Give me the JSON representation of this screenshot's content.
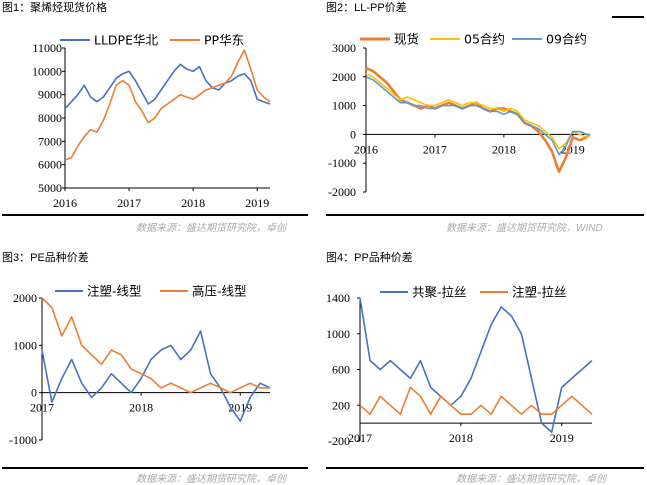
{
  "colors": {
    "blue": "#4472C4",
    "orange": "#ED7D31",
    "yellow": "#FFC000",
    "lightblue": "#5B9BD5",
    "source_gray": "#a9a9a9",
    "axis": "#000000"
  },
  "charts": {
    "c1": {
      "title": "图1：聚烯烃现货价格"
    },
    "c2": {
      "title": "图2：LL-PP价差"
    },
    "c3": {
      "title": "图3：PE品种价差"
    },
    "c4": {
      "title": "图4：PP品种价差"
    }
  },
  "sources": {
    "top_left": "数据来源：盛达期货研究院，卓创",
    "top_right": "数据来源：盛达期货研究院，WIND",
    "bottom_left": "数据来源：盛达期货研究院，卓创",
    "bottom_right": "数据来源：盛达期货研究院，卓创"
  },
  "chart_data": [
    {
      "id": "c1",
      "type": "line",
      "title": "图1：聚烯烃现货价格",
      "x_ticks": [
        "2016",
        "2017",
        "2018",
        "2019"
      ],
      "x_range": [
        2016.0,
        2019.2
      ],
      "ylim": [
        5000,
        11000
      ],
      "y_ticks": [
        5000,
        6000,
        7000,
        8000,
        9000,
        10000,
        11000
      ],
      "legend": "top",
      "series": [
        {
          "name": "LLDPE华北",
          "color": "#4472C4",
          "x": [
            2016.0,
            2016.1,
            2016.2,
            2016.3,
            2016.4,
            2016.5,
            2016.6,
            2016.7,
            2016.8,
            2016.9,
            2017.0,
            2017.1,
            2017.2,
            2017.3,
            2017.4,
            2017.5,
            2017.6,
            2017.7,
            2017.8,
            2017.9,
            2018.0,
            2018.1,
            2018.2,
            2018.3,
            2018.4,
            2018.5,
            2018.6,
            2018.7,
            2018.8,
            2018.9,
            2019.0,
            2019.1,
            2019.2
          ],
          "y": [
            8400,
            8700,
            9000,
            9400,
            8900,
            8700,
            8900,
            9300,
            9700,
            9900,
            10000,
            9600,
            9100,
            8600,
            8800,
            9200,
            9600,
            10000,
            10300,
            10100,
            10000,
            10200,
            9600,
            9300,
            9200,
            9500,
            9600,
            9800,
            9900,
            9600,
            8800,
            8700,
            8600
          ]
        },
        {
          "name": "PP华东",
          "color": "#ED7D31",
          "x": [
            2016.0,
            2016.1,
            2016.2,
            2016.3,
            2016.4,
            2016.5,
            2016.6,
            2016.7,
            2016.8,
            2016.9,
            2017.0,
            2017.1,
            2017.2,
            2017.3,
            2017.4,
            2017.5,
            2017.6,
            2017.7,
            2017.8,
            2017.9,
            2018.0,
            2018.1,
            2018.2,
            2018.3,
            2018.4,
            2018.5,
            2018.6,
            2018.7,
            2018.8,
            2018.9,
            2019.0,
            2019.1,
            2019.2
          ],
          "y": [
            6200,
            6300,
            6800,
            7200,
            7500,
            7400,
            7900,
            8600,
            9400,
            9600,
            9400,
            8700,
            8300,
            7800,
            8000,
            8400,
            8600,
            8800,
            9000,
            8900,
            8800,
            9000,
            9200,
            9300,
            9400,
            9500,
            9800,
            10400,
            10900,
            10100,
            9200,
            8900,
            8700
          ]
        }
      ]
    },
    {
      "id": "c2",
      "type": "line",
      "title": "图2：LL-PP价差",
      "x_ticks": [
        "2016",
        "2017",
        "2018",
        "2019"
      ],
      "x_range": [
        2016.0,
        2019.25
      ],
      "ylim": [
        -2000,
        3000
      ],
      "y_ticks": [
        -2000,
        -1000,
        0,
        1000,
        2000,
        3000
      ],
      "legend": "top",
      "series": [
        {
          "name": "现货",
          "color": "#ED7D31",
          "x": [
            2016.0,
            2016.1,
            2016.2,
            2016.3,
            2016.4,
            2016.5,
            2016.6,
            2016.7,
            2016.8,
            2016.9,
            2017.0,
            2017.1,
            2017.2,
            2017.3,
            2017.4,
            2017.5,
            2017.6,
            2017.7,
            2017.8,
            2017.9,
            2018.0,
            2018.1,
            2018.2,
            2018.3,
            2018.4,
            2018.5,
            2018.6,
            2018.7,
            2018.8,
            2018.9,
            2019.0,
            2019.1,
            2019.2,
            2019.25
          ],
          "y": [
            2300,
            2200,
            2000,
            1800,
            1500,
            1200,
            1100,
            1000,
            900,
            1000,
            900,
            1000,
            1100,
            1000,
            900,
            1000,
            1100,
            900,
            800,
            900,
            900,
            800,
            700,
            400,
            300,
            100,
            -200,
            -600,
            -1300,
            -800,
            -100,
            -200,
            -100,
            0
          ]
        },
        {
          "name": "05合约",
          "color": "#FFC000",
          "x": [
            2016.0,
            2016.1,
            2016.2,
            2016.3,
            2016.4,
            2016.5,
            2016.6,
            2016.7,
            2016.8,
            2016.9,
            2017.0,
            2017.1,
            2017.2,
            2017.3,
            2017.4,
            2017.5,
            2017.6,
            2017.7,
            2017.8,
            2017.9,
            2018.0,
            2018.1,
            2018.2,
            2018.3,
            2018.4,
            2018.5,
            2018.6,
            2018.7,
            2018.8,
            2018.9,
            2019.0,
            2019.1,
            2019.2,
            2019.25
          ],
          "y": [
            2100,
            2000,
            1800,
            1600,
            1400,
            1200,
            1300,
            1200,
            1100,
            1000,
            1000,
            1100,
            1200,
            1100,
            1000,
            1100,
            1100,
            1000,
            900,
            900,
            800,
            900,
            800,
            500,
            400,
            300,
            100,
            -100,
            -500,
            -300,
            100,
            0,
            -100,
            0
          ]
        },
        {
          "name": "09合约",
          "color": "#5B9BD5",
          "x": [
            2016.0,
            2016.1,
            2016.2,
            2016.3,
            2016.4,
            2016.5,
            2016.6,
            2016.7,
            2016.8,
            2016.9,
            2017.0,
            2017.1,
            2017.2,
            2017.3,
            2017.4,
            2017.5,
            2017.6,
            2017.7,
            2017.8,
            2017.9,
            2018.0,
            2018.1,
            2018.2,
            2018.3,
            2018.4,
            2018.5,
            2018.6,
            2018.7,
            2018.8,
            2018.9,
            2019.0,
            2019.1,
            2019.2,
            2019.25
          ],
          "y": [
            2000,
            1900,
            1700,
            1500,
            1300,
            1100,
            1100,
            1000,
            1000,
            900,
            900,
            1000,
            1000,
            1000,
            900,
            1000,
            1000,
            900,
            800,
            800,
            700,
            800,
            700,
            400,
            300,
            200,
            0,
            -200,
            -700,
            -400,
            100,
            100,
            0,
            0
          ]
        }
      ]
    },
    {
      "id": "c3",
      "type": "line",
      "title": "图3：PE品种价差",
      "x_ticks": [
        "2017",
        "2018",
        "2019"
      ],
      "x_range": [
        2017.0,
        2019.3
      ],
      "ylim": [
        -1000,
        2000
      ],
      "y_ticks": [
        -1000,
        0,
        1000,
        2000
      ],
      "legend": "top",
      "series": [
        {
          "name": "注塑-线型",
          "color": "#4472C4",
          "x": [
            2017.0,
            2017.1,
            2017.2,
            2017.3,
            2017.4,
            2017.5,
            2017.6,
            2017.7,
            2017.8,
            2017.9,
            2018.0,
            2018.1,
            2018.2,
            2018.3,
            2018.4,
            2018.5,
            2018.6,
            2018.7,
            2018.8,
            2018.9,
            2019.0,
            2019.1,
            2019.2,
            2019.3
          ],
          "y": [
            900,
            -200,
            300,
            700,
            200,
            -100,
            100,
            400,
            200,
            0,
            300,
            700,
            900,
            1000,
            700,
            900,
            1300,
            400,
            100,
            -300,
            -600,
            -100,
            200,
            100
          ]
        },
        {
          "name": "高压-线型",
          "color": "#ED7D31",
          "x": [
            2017.0,
            2017.1,
            2017.2,
            2017.3,
            2017.4,
            2017.5,
            2017.6,
            2017.7,
            2017.8,
            2017.9,
            2018.0,
            2018.1,
            2018.2,
            2018.3,
            2018.4,
            2018.5,
            2018.6,
            2018.7,
            2018.8,
            2018.9,
            2019.0,
            2019.1,
            2019.2,
            2019.3
          ],
          "y": [
            2000,
            1800,
            1200,
            1600,
            1000,
            800,
            600,
            900,
            800,
            500,
            400,
            300,
            100,
            200,
            100,
            0,
            100,
            200,
            100,
            0,
            100,
            200,
            100,
            100
          ]
        }
      ]
    },
    {
      "id": "c4",
      "type": "line",
      "title": "图4：PP品种价差",
      "x_ticks": [
        "2017",
        "2018",
        "2019"
      ],
      "x_range": [
        2017.0,
        2019.3
      ],
      "ylim": [
        -200,
        1400
      ],
      "y_ticks": [
        -200,
        200,
        600,
        1000,
        1400
      ],
      "legend": "top",
      "series": [
        {
          "name": "共聚-拉丝",
          "color": "#4472C4",
          "x": [
            2017.0,
            2017.1,
            2017.2,
            2017.3,
            2017.4,
            2017.5,
            2017.6,
            2017.7,
            2017.8,
            2017.9,
            2018.0,
            2018.1,
            2018.2,
            2018.3,
            2018.4,
            2018.5,
            2018.6,
            2018.7,
            2018.8,
            2018.9,
            2019.0,
            2019.1,
            2019.2,
            2019.3
          ],
          "y": [
            1400,
            700,
            600,
            700,
            600,
            500,
            700,
            400,
            300,
            200,
            300,
            500,
            800,
            1100,
            1300,
            1200,
            1000,
            500,
            0,
            -100,
            400,
            500,
            600,
            700
          ]
        },
        {
          "name": "注塑-拉丝",
          "color": "#ED7D31",
          "x": [
            2017.0,
            2017.1,
            2017.2,
            2017.3,
            2017.4,
            2017.5,
            2017.6,
            2017.7,
            2017.8,
            2017.9,
            2018.0,
            2018.1,
            2018.2,
            2018.3,
            2018.4,
            2018.5,
            2018.6,
            2018.7,
            2018.8,
            2018.9,
            2019.0,
            2019.1,
            2019.2,
            2019.3
          ],
          "y": [
            200,
            100,
            300,
            200,
            100,
            400,
            300,
            100,
            300,
            200,
            100,
            100,
            200,
            100,
            300,
            200,
            100,
            200,
            100,
            100,
            200,
            300,
            200,
            100
          ]
        }
      ]
    }
  ]
}
